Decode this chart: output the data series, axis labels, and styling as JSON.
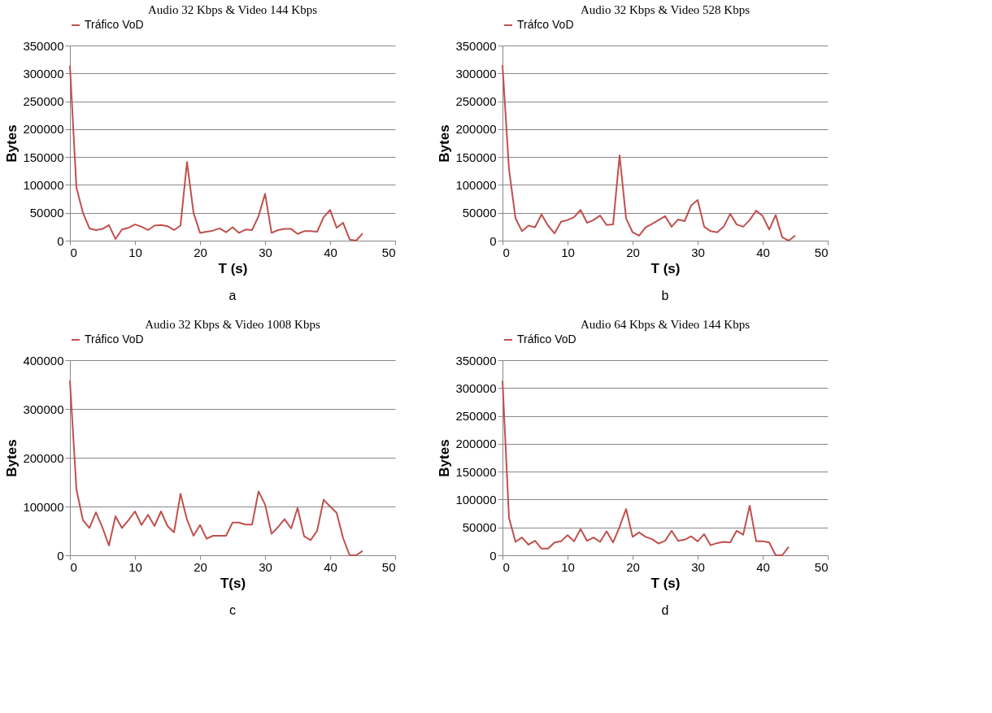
{
  "chart_data": [
    {
      "type": "line",
      "title": "Audio 32 Kbps & Video 144 Kbps",
      "xlabel": "T (s)",
      "ylabel": "Bytes",
      "annotations": [
        "a"
      ],
      "x": [
        0,
        1,
        2,
        3,
        4,
        5,
        6,
        7,
        8,
        9,
        10,
        11,
        12,
        13,
        14,
        15,
        16,
        17,
        18,
        19,
        20,
        21,
        22,
        23,
        24,
        25,
        26,
        27,
        28,
        29,
        30,
        31,
        32,
        33,
        34,
        35,
        36,
        37,
        38,
        39,
        40,
        41,
        42,
        43,
        44,
        45
      ],
      "xlim": [
        0,
        50
      ],
      "xticks": [
        0,
        10,
        20,
        30,
        40,
        50
      ],
      "ylim": [
        0,
        350000
      ],
      "yticks": [
        0,
        50000,
        100000,
        150000,
        200000,
        250000,
        300000,
        350000
      ],
      "grid": "y",
      "legend": "top",
      "series": [
        {
          "name": "Tráfico VoD",
          "color": "#c0504d",
          "values": [
            314000,
            95000,
            50000,
            22000,
            19000,
            21000,
            28000,
            3000,
            20000,
            23000,
            29000,
            25000,
            19000,
            27000,
            28000,
            26000,
            19000,
            27000,
            141000,
            50000,
            14000,
            16000,
            18000,
            22000,
            15000,
            24000,
            14000,
            20000,
            19000,
            44000,
            84000,
            14000,
            19000,
            21000,
            21000,
            12000,
            17000,
            17000,
            16000,
            42000,
            55000,
            23000,
            32000,
            2000,
            0,
            13000
          ]
        }
      ]
    },
    {
      "type": "line",
      "title": "Audio 32 Kbps & Video 528 Kbps",
      "xlabel": "T (s)",
      "ylabel": "Bytes",
      "annotations": [
        "b"
      ],
      "x": [
        0,
        1,
        2,
        3,
        4,
        5,
        6,
        7,
        8,
        9,
        10,
        11,
        12,
        13,
        14,
        15,
        16,
        17,
        18,
        19,
        20,
        21,
        22,
        23,
        24,
        25,
        26,
        27,
        28,
        29,
        30,
        31,
        32,
        33,
        34,
        35,
        36,
        37,
        38,
        39,
        40,
        41,
        42,
        43,
        44,
        45
      ],
      "xlim": [
        0,
        50
      ],
      "xticks": [
        0,
        10,
        20,
        30,
        40,
        50
      ],
      "ylim": [
        0,
        350000
      ],
      "yticks": [
        0,
        50000,
        100000,
        150000,
        200000,
        250000,
        300000,
        350000
      ],
      "grid": "y",
      "legend": "top",
      "series": [
        {
          "name": "Tráfco VoD",
          "color": "#c0504d",
          "values": [
            315000,
            128000,
            40000,
            17000,
            27000,
            24000,
            47000,
            27000,
            13000,
            34000,
            37000,
            42000,
            55000,
            32000,
            37000,
            45000,
            28000,
            29000,
            153000,
            40000,
            15000,
            9000,
            24000,
            30000,
            37000,
            44000,
            25000,
            38000,
            35000,
            63000,
            73000,
            25000,
            17000,
            15000,
            25000,
            48000,
            29000,
            25000,
            37000,
            54000,
            44000,
            20000,
            46000,
            6000,
            0,
            9000
          ]
        }
      ]
    },
    {
      "type": "line",
      "title": "Audio 32 Kbps & Video 1008 Kbps",
      "xlabel": "T(s)",
      "ylabel": "Bytes",
      "annotations": [
        "c"
      ],
      "x": [
        0,
        1,
        2,
        3,
        4,
        5,
        6,
        7,
        8,
        9,
        10,
        11,
        12,
        13,
        14,
        15,
        16,
        17,
        18,
        19,
        20,
        21,
        22,
        23,
        24,
        25,
        26,
        27,
        28,
        29,
        30,
        31,
        32,
        33,
        34,
        35,
        36,
        37,
        38,
        39,
        40,
        41,
        42,
        43,
        44,
        45
      ],
      "xlim": [
        0,
        50
      ],
      "xticks": [
        0,
        10,
        20,
        30,
        40,
        50
      ],
      "ylim": [
        0,
        400000
      ],
      "yticks": [
        0,
        100000,
        200000,
        300000,
        400000
      ],
      "grid": "y",
      "legend": "top",
      "series": [
        {
          "name": "Tráfico VoD",
          "color": "#c0504d",
          "values": [
            358000,
            135000,
            72000,
            56000,
            88000,
            57000,
            20000,
            80000,
            56000,
            72000,
            90000,
            62000,
            83000,
            60000,
            90000,
            60000,
            47000,
            126000,
            73000,
            40000,
            62000,
            34000,
            40000,
            40000,
            40000,
            67000,
            67000,
            63000,
            63000,
            131000,
            104000,
            44000,
            58000,
            74000,
            55000,
            97000,
            39000,
            31000,
            50000,
            114000,
            100000,
            87000,
            35000,
            0,
            0,
            9000
          ]
        }
      ]
    },
    {
      "type": "line",
      "title": "Audio 64 Kbps & Video 144 Kbps",
      "xlabel": "T (s)",
      "ylabel": "Bytes",
      "annotations": [
        "d"
      ],
      "x": [
        0,
        1,
        2,
        3,
        4,
        5,
        6,
        7,
        8,
        9,
        10,
        11,
        12,
        13,
        14,
        15,
        16,
        17,
        18,
        19,
        20,
        21,
        22,
        23,
        24,
        25,
        26,
        27,
        28,
        29,
        30,
        31,
        32,
        33,
        34,
        35,
        36,
        37,
        38,
        39,
        40,
        41,
        42,
        43,
        44
      ],
      "xlim": [
        0,
        50
      ],
      "xticks": [
        0,
        10,
        20,
        30,
        40,
        50
      ],
      "ylim": [
        0,
        350000
      ],
      "yticks": [
        0,
        50000,
        100000,
        150000,
        200000,
        250000,
        300000,
        350000
      ],
      "grid": "y",
      "legend": "top",
      "series": [
        {
          "name": "Tráfico VoD",
          "color": "#c0504d",
          "values": [
            313000,
            67000,
            24000,
            32000,
            19000,
            26000,
            12000,
            12000,
            23000,
            25000,
            36000,
            25000,
            47000,
            26000,
            32000,
            24000,
            43000,
            23000,
            51000,
            83000,
            33000,
            41000,
            33000,
            29000,
            21000,
            26000,
            44000,
            26000,
            28000,
            34000,
            25000,
            38000,
            18000,
            22000,
            24000,
            23000,
            44000,
            37000,
            89000,
            25000,
            25000,
            23000,
            0,
            0,
            15000
          ]
        }
      ]
    }
  ]
}
